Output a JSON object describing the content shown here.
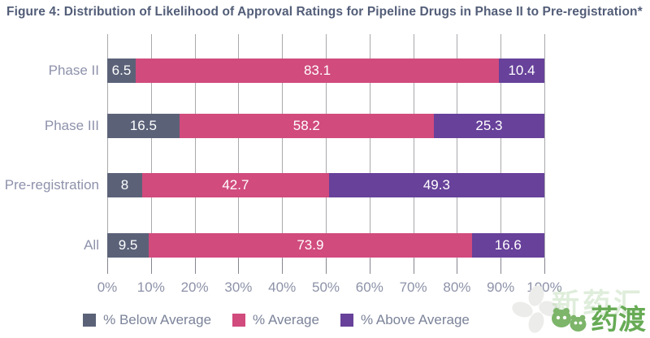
{
  "title": "Figure 4: Distribution of Likelihood of Approval Ratings for Pipeline Drugs in Phase II to Pre-registration*",
  "chart_data": {
    "type": "bar",
    "orientation": "horizontal",
    "stacked": true,
    "title": "Figure 4: Distribution of Likelihood of Approval Ratings for Pipeline Drugs in Phase II to Pre-registration*",
    "categories": [
      "Phase II",
      "Phase III",
      "Pre-registration",
      "All"
    ],
    "series": [
      {
        "name": "% Below Average",
        "color": "#5b6278",
        "values": [
          6.5,
          16.5,
          8,
          9.5
        ]
      },
      {
        "name": "% Average",
        "color": "#d14b7d",
        "values": [
          83.1,
          58.2,
          42.7,
          73.9
        ]
      },
      {
        "name": "% Above Average",
        "color": "#67419a",
        "values": [
          10.4,
          25.3,
          49.3,
          16.6
        ]
      }
    ],
    "x_ticks": [
      "0%",
      "10%",
      "20%",
      "30%",
      "40%",
      "50%",
      "60%",
      "70%",
      "80%",
      "90%",
      "100%"
    ],
    "xlim": [
      0,
      100
    ],
    "grid": "vertical",
    "legend_position": "bottom"
  },
  "watermark": {
    "faint_text": "新药汇",
    "brand_text": "药渡",
    "brand_color": "#67ab55"
  }
}
